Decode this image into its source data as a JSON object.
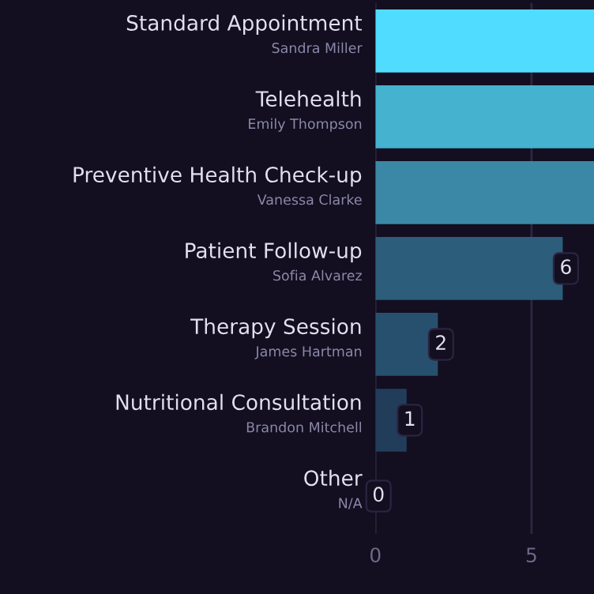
{
  "chart_data": {
    "type": "bar",
    "orientation": "horizontal",
    "categories": [
      "Standard Appointment\nSandra Miller",
      "Telehealth\nEmily Thompson",
      "Preventive Health Check-up\nVanessa Clarke",
      "Patient Follow-up\nSofia Alvarez",
      "Therapy Session\nJames Hartman",
      "Nutritional Consultation\nBrandon Mitchell",
      "Other\nN/A"
    ],
    "values": [
      7,
      7,
      7,
      6,
      2,
      1,
      0
    ],
    "colors": [
      "#50dcff",
      "#45b2cf",
      "#3a88a5",
      "#2c5d7a",
      "#27506e",
      "#223d5a",
      "#1f2f4a"
    ],
    "value_labels": [
      null,
      null,
      null,
      "6",
      "2",
      "1",
      "0"
    ],
    "xlim": [
      0,
      7
    ],
    "xticks": [
      0,
      5
    ],
    "grid": "x",
    "legend": false
  }
}
